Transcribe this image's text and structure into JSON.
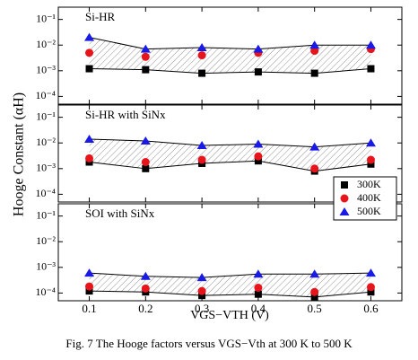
{
  "ylabel": "Hooge Constant (αH)",
  "xlabel": "VGS−VTH (V)",
  "caption": "Fig. 7 The Hooge factors versus VGS−Vth at 300 K to 500 K",
  "chart_data": [
    {
      "type": "scatter",
      "title": "Si-HR",
      "log_scale": true,
      "x": [
        0.1,
        0.2,
        0.3,
        0.4,
        0.5,
        0.6
      ],
      "xlim": [
        0.045,
        0.655
      ],
      "xticks": [
        0.1,
        0.2,
        0.3,
        0.4,
        0.5,
        0.6
      ],
      "ylim": [
        5e-05,
        0.3
      ],
      "yticks": [
        {
          "value": 0.0001,
          "label": "10⁻⁴"
        },
        {
          "value": 0.001,
          "label": "10⁻³"
        },
        {
          "value": 0.01,
          "label": "10⁻²"
        },
        {
          "value": 0.1,
          "label": "10⁻¹"
        }
      ],
      "series": [
        {
          "color": "#000000",
          "marker": "square",
          "values": [
            0.0012,
            0.0011,
            0.0008,
            0.0009,
            0.0008,
            0.0012
          ]
        },
        {
          "color": "#e8141c",
          "marker": "circle",
          "values": [
            0.005,
            0.0035,
            0.004,
            0.005,
            0.006,
            0.007
          ]
        },
        {
          "color": "#1a1ae6",
          "marker": "triangle",
          "values": [
            0.02,
            0.007,
            0.008,
            0.007,
            0.01,
            0.01
          ]
        }
      ]
    },
    {
      "type": "scatter",
      "title": "Si-HR with SiNx",
      "log_scale": true,
      "x": [
        0.1,
        0.2,
        0.3,
        0.4,
        0.5,
        0.6
      ],
      "xlim": [
        0.045,
        0.655
      ],
      "xticks": [
        0.1,
        0.2,
        0.3,
        0.4,
        0.5,
        0.6
      ],
      "ylim": [
        5e-05,
        0.3
      ],
      "yticks": [
        {
          "value": 0.0001,
          "label": "10⁻⁴"
        },
        {
          "value": 0.001,
          "label": "10⁻³"
        },
        {
          "value": 0.01,
          "label": "10⁻²"
        },
        {
          "value": 0.1,
          "label": "10⁻¹"
        }
      ],
      "series": [
        {
          "color": "#000000",
          "marker": "square",
          "values": [
            0.0018,
            0.001,
            0.0016,
            0.002,
            0.0008,
            0.0015
          ]
        },
        {
          "color": "#e8141c",
          "marker": "circle",
          "values": [
            0.0025,
            0.0018,
            0.0022,
            0.003,
            0.001,
            0.0022
          ]
        },
        {
          "color": "#1a1ae6",
          "marker": "triangle",
          "values": [
            0.014,
            0.012,
            0.008,
            0.009,
            0.007,
            0.01
          ]
        }
      ]
    },
    {
      "type": "scatter",
      "title": "SOI   with SiNx",
      "log_scale": true,
      "legend": "upper right",
      "x": [
        0.1,
        0.2,
        0.3,
        0.4,
        0.5,
        0.6
      ],
      "xlim": [
        0.045,
        0.655
      ],
      "xticks": [
        0.1,
        0.2,
        0.3,
        0.4,
        0.5,
        0.6
      ],
      "ylim": [
        5e-05,
        0.3
      ],
      "yticks": [
        {
          "value": 0.0001,
          "label": "10⁻⁴"
        },
        {
          "value": 0.001,
          "label": "10⁻³"
        },
        {
          "value": 0.01,
          "label": "10⁻²"
        },
        {
          "value": 0.1,
          "label": "10⁻¹"
        }
      ],
      "series": [
        {
          "name": "300K",
          "color": "#000000",
          "marker": "square",
          "values": [
            0.00012,
            0.00011,
            8e-05,
            9e-05,
            7e-05,
            0.00011
          ]
        },
        {
          "name": "400K",
          "color": "#e8141c",
          "marker": "circle",
          "values": [
            0.00018,
            0.00015,
            0.00012,
            0.00016,
            0.00011,
            0.00017
          ]
        },
        {
          "name": "500K",
          "color": "#1a1ae6",
          "marker": "triangle",
          "values": [
            0.0006,
            0.00045,
            0.0004,
            0.00055,
            0.00055,
            0.0006
          ]
        }
      ]
    }
  ]
}
